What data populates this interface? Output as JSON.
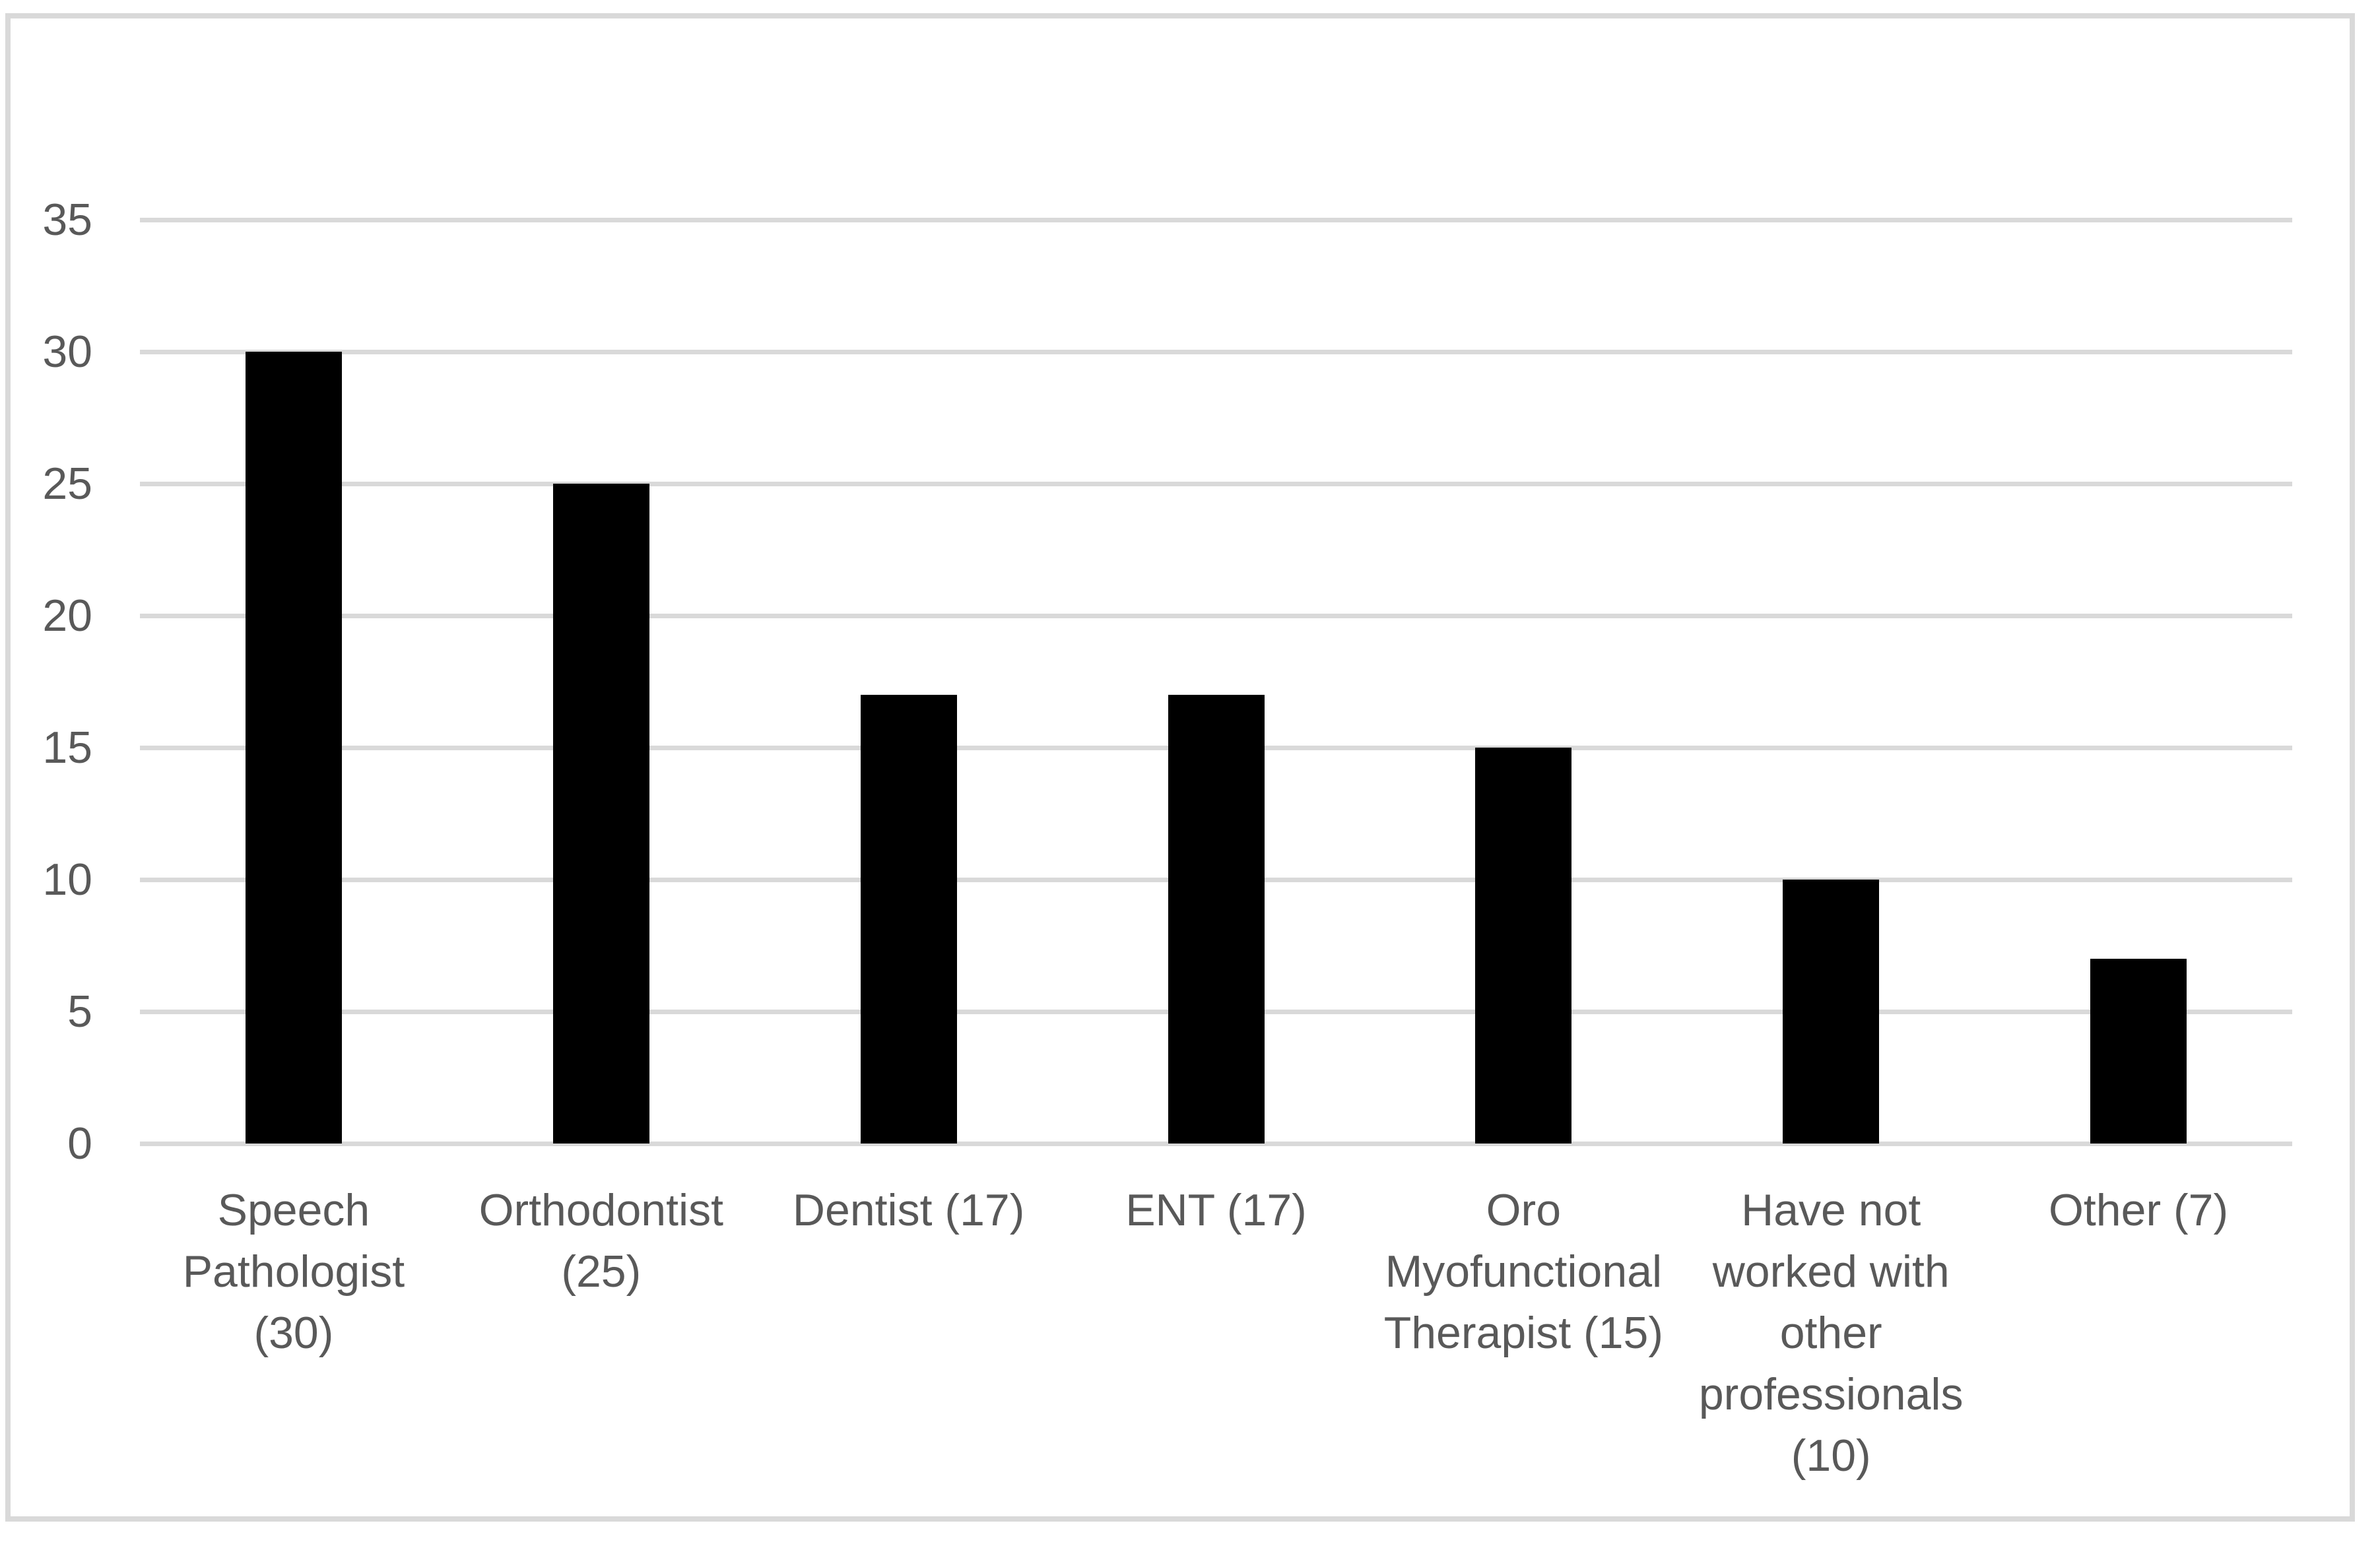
{
  "chart_data": {
    "type": "bar",
    "title": "",
    "xlabel": "",
    "ylabel": "",
    "categories": [
      "Speech Pathologist (30)",
      "Orthodontist (25)",
      "Dentist (17)",
      "ENT (17)",
      "Oro Myofunctional Therapist (15)",
      "Have not worked with other professionals (10)",
      "Other (7)"
    ],
    "category_lines": [
      [
        "Speech",
        "Pathologist",
        "(30)"
      ],
      [
        "Orthodontist",
        "(25)"
      ],
      [
        "Dentist (17)"
      ],
      [
        "ENT (17)"
      ],
      [
        "Oro",
        "Myofunctional",
        "Therapist (15)"
      ],
      [
        "Have not",
        "worked with",
        "other",
        "professionals",
        "(10)"
      ],
      [
        "Other (7)"
      ]
    ],
    "values": [
      30,
      25,
      17,
      17,
      15,
      10,
      7
    ],
    "yticks": [
      0,
      5,
      10,
      15,
      20,
      25,
      30,
      35
    ],
    "ylim": [
      0,
      35
    ],
    "grid": "horizontal",
    "legend_position": "none",
    "bar_color": "#000000",
    "gridline_color": "#d9d9d9",
    "axis_text_color": "#595959",
    "frame_color": "#d9d9d9",
    "background_color": "#ffffff"
  }
}
